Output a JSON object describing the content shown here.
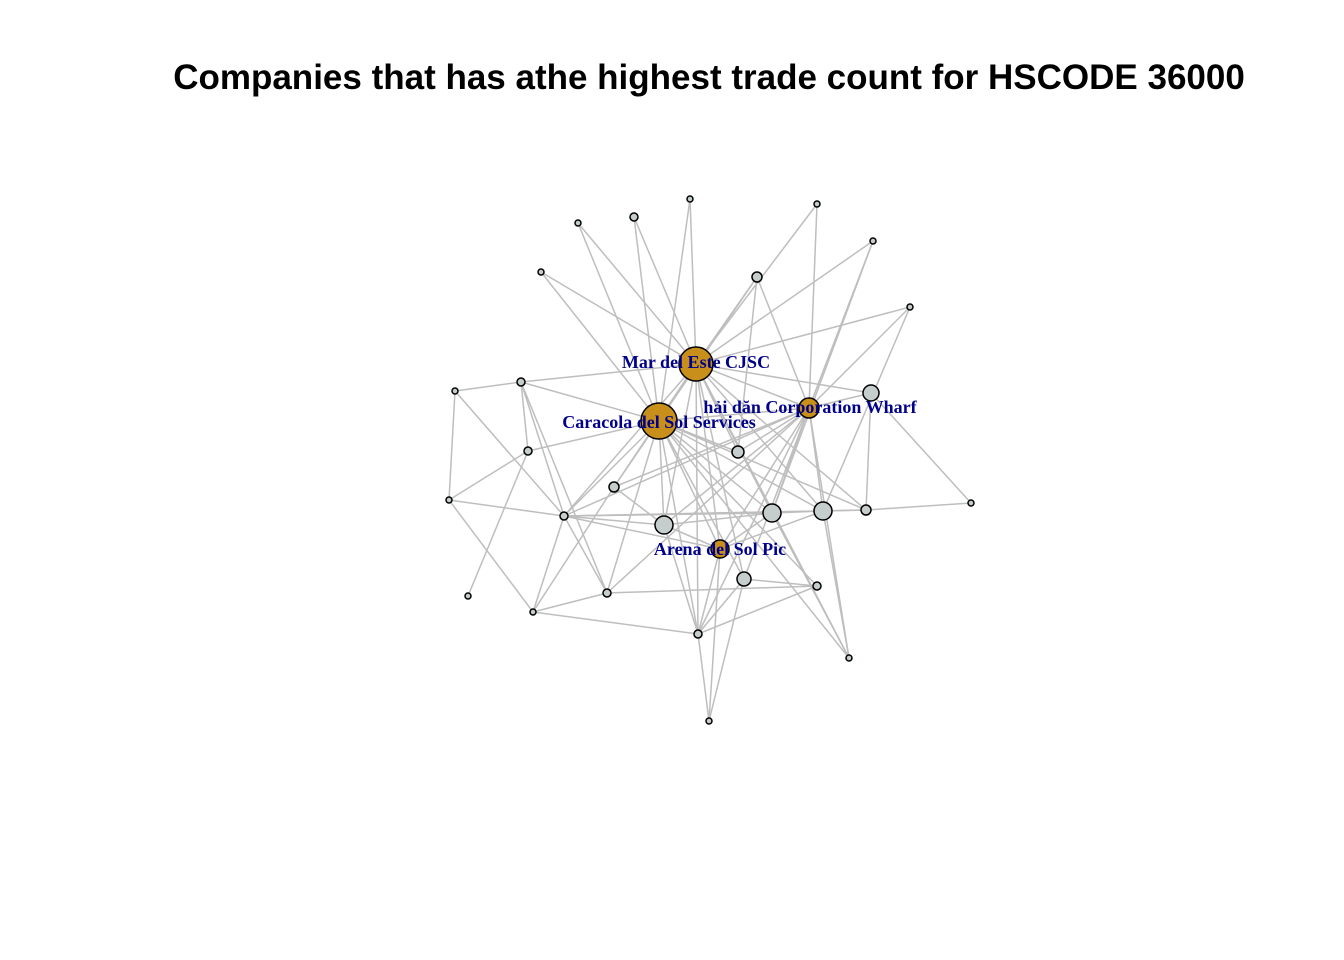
{
  "title": "Companies that has athe highest trade count for HSCODE 36000",
  "colors": {
    "edge": "#bebebe",
    "highlight_node": "#c8901a",
    "regular_node": "#c5cdcd",
    "label": "#00008b"
  },
  "labels": [
    "Mar del Este CJSC",
    "Caracola del Sol Services",
    "hải dăn Corporation Wharf",
    "Arena del Sol Pic"
  ]
}
